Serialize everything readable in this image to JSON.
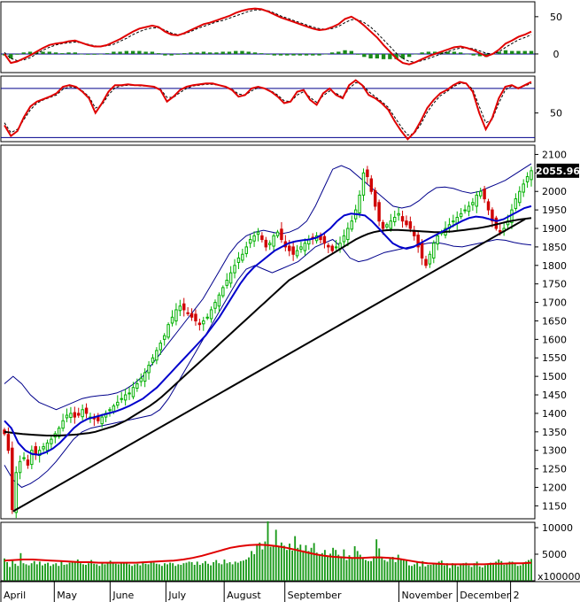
{
  "chart_data": [
    {
      "type": "line",
      "panel": "macd",
      "yticks": [
        0,
        50
      ],
      "ylim": [
        -25,
        70
      ],
      "series": [
        {
          "color": "#e00000",
          "values": [
            0,
            -12,
            -10,
            -6,
            -2,
            3,
            8,
            12,
            14,
            15,
            17,
            18,
            15,
            12,
            10,
            10,
            12,
            16,
            20,
            25,
            30,
            34,
            36,
            38,
            36,
            30,
            26,
            25,
            28,
            32,
            36,
            40,
            42,
            45,
            48,
            51,
            55,
            58,
            60,
            61,
            60,
            57,
            53,
            49,
            46,
            43,
            40,
            37,
            34,
            32,
            33,
            36,
            40,
            47,
            50,
            45,
            38,
            30,
            22,
            12,
            3,
            -6,
            -12,
            -14,
            -11,
            -7,
            -3,
            0,
            3,
            6,
            9,
            10,
            8,
            5,
            1,
            -3,
            0,
            6,
            14,
            18,
            23,
            26,
            30
          ]
        },
        {
          "color": "#000000",
          "dash": true,
          "values": [
            2,
            -6,
            -9,
            -8,
            -5,
            0,
            5,
            9,
            12,
            14,
            15,
            16,
            15,
            13,
            11,
            10,
            11,
            13,
            17,
            21,
            26,
            30,
            33,
            35,
            35,
            32,
            28,
            26,
            27,
            30,
            34,
            37,
            40,
            43,
            45,
            48,
            51,
            54,
            57,
            59,
            59,
            58,
            55,
            51,
            48,
            45,
            42,
            39,
            36,
            34,
            33,
            34,
            37,
            42,
            46,
            46,
            42,
            36,
            28,
            19,
            10,
            1,
            -6,
            -10,
            -11,
            -9,
            -6,
            -3,
            0,
            3,
            6,
            8,
            8,
            7,
            4,
            1,
            0,
            3,
            9,
            14,
            19,
            22,
            26
          ]
        },
        {
          "type": "histogram",
          "color": "#1a8a1a",
          "values": [
            -2,
            -6,
            -1,
            2,
            3,
            3,
            3,
            3,
            2,
            1,
            2,
            2,
            0,
            -1,
            -1,
            0,
            1,
            3,
            3,
            4,
            4,
            4,
            3,
            3,
            1,
            -2,
            -2,
            -1,
            1,
            2,
            2,
            3,
            2,
            2,
            3,
            3,
            4,
            4,
            3,
            2,
            1,
            -1,
            -2,
            -2,
            -2,
            -2,
            -2,
            -2,
            -2,
            -2,
            0,
            2,
            3,
            5,
            4,
            -1,
            -4,
            -6,
            -6,
            -7,
            -7,
            -7,
            -6,
            -4,
            0,
            2,
            3,
            3,
            3,
            3,
            3,
            2,
            0,
            -2,
            -3,
            -4,
            0,
            3,
            5,
            4,
            4,
            4,
            4
          ]
        }
      ]
    },
    {
      "type": "line",
      "panel": "rsi",
      "yticks": [
        50
      ],
      "hlines": [
        80,
        20
      ],
      "ylim": [
        15,
        95
      ],
      "series": [
        {
          "color": "#e00000",
          "values": [
            35,
            22,
            28,
            45,
            58,
            64,
            67,
            70,
            74,
            82,
            84,
            82,
            76,
            68,
            50,
            62,
            76,
            84,
            84,
            85,
            84,
            84,
            83,
            82,
            78,
            64,
            70,
            78,
            82,
            84,
            85,
            86,
            86,
            84,
            82,
            78,
            70,
            72,
            80,
            82,
            80,
            76,
            70,
            62,
            64,
            76,
            78,
            66,
            60,
            74,
            80,
            72,
            68,
            84,
            90,
            84,
            72,
            68,
            62,
            54,
            40,
            28,
            18,
            26,
            40,
            56,
            66,
            74,
            78,
            84,
            88,
            86,
            76,
            50,
            30,
            44,
            68,
            82,
            84,
            80,
            84,
            88
          ]
        },
        {
          "color": "#000000",
          "dash": true,
          "values": [
            38,
            26,
            30,
            42,
            54,
            62,
            66,
            69,
            72,
            79,
            82,
            81,
            77,
            70,
            56,
            60,
            72,
            81,
            83,
            84,
            84,
            83,
            83,
            82,
            79,
            69,
            69,
            75,
            80,
            83,
            84,
            85,
            85,
            84,
            82,
            79,
            73,
            72,
            77,
            81,
            80,
            77,
            72,
            65,
            64,
            72,
            76,
            69,
            63,
            71,
            77,
            74,
            69,
            80,
            87,
            85,
            76,
            70,
            64,
            57,
            45,
            33,
            23,
            25,
            36,
            51,
            62,
            71,
            76,
            82,
            86,
            86,
            79,
            58,
            38,
            42,
            62,
            78,
            83,
            81,
            83,
            86
          ]
        }
      ]
    },
    {
      "type": "candlestick",
      "panel": "price",
      "ylim": [
        1115,
        2125
      ],
      "yticks": [
        1150,
        1200,
        1250,
        1300,
        1350,
        1400,
        1450,
        1500,
        1550,
        1600,
        1650,
        1700,
        1750,
        1800,
        1850,
        1900,
        1950,
        2000,
        2050,
        2100
      ],
      "last_price_label": "2055.96",
      "x_labels": [
        "April",
        "May",
        "June",
        "July",
        "August",
        "September",
        "November",
        "December",
        "2"
      ],
      "x_label_positions": [
        0,
        22,
        45,
        68,
        92,
        117,
        164,
        188,
        210
      ],
      "trendline": {
        "from": [
          5,
          1135
        ],
        "to": [
          216,
          1925
        ]
      },
      "closes": [
        1345,
        1300,
        1140,
        1240,
        1270,
        1280,
        1260,
        1300,
        1290,
        1300,
        1310,
        1320,
        1330,
        1345,
        1360,
        1380,
        1395,
        1400,
        1390,
        1395,
        1410,
        1400,
        1390,
        1385,
        1380,
        1390,
        1400,
        1410,
        1420,
        1430,
        1440,
        1450,
        1455,
        1470,
        1480,
        1495,
        1510,
        1530,
        1550,
        1570,
        1590,
        1610,
        1640,
        1660,
        1680,
        1690,
        1680,
        1670,
        1660,
        1650,
        1640,
        1650,
        1660,
        1680,
        1700,
        1720,
        1740,
        1760,
        1780,
        1800,
        1820,
        1830,
        1850,
        1870,
        1880,
        1890,
        1870,
        1850,
        1860,
        1880,
        1890,
        1870,
        1850,
        1840,
        1830,
        1840,
        1850,
        1860,
        1870,
        1875,
        1880,
        1870,
        1860,
        1850,
        1840,
        1850,
        1860,
        1880,
        1900,
        1920,
        1950,
        1990,
        2050,
        2040,
        2000,
        1960,
        1920,
        1900,
        1910,
        1920,
        1930,
        1940,
        1920,
        1910,
        1900,
        1880,
        1850,
        1820,
        1800,
        1830,
        1860,
        1880,
        1890,
        1900,
        1910,
        1920,
        1930,
        1940,
        1950,
        1960,
        1970,
        1990,
        2000,
        1980,
        1950,
        1920,
        1900,
        1890,
        1900,
        1920,
        1950,
        1980,
        2000,
        2020,
        2040,
        2056
      ],
      "ma_long": [
        1350,
        1348,
        1346,
        1344,
        1343,
        1342,
        1341,
        1340,
        1340,
        1340,
        1341,
        1342,
        1343,
        1345,
        1347,
        1350,
        1355,
        1360,
        1365,
        1372,
        1380,
        1390,
        1400,
        1410,
        1420,
        1432,
        1445,
        1460,
        1475,
        1490,
        1505,
        1520,
        1535,
        1550,
        1565,
        1580,
        1595,
        1610,
        1625,
        1640,
        1655,
        1670,
        1685,
        1700,
        1715,
        1730,
        1745,
        1760,
        1770,
        1780,
        1790,
        1800,
        1810,
        1820,
        1830,
        1840,
        1850,
        1860,
        1870,
        1878,
        1885,
        1890,
        1893,
        1895,
        1896,
        1896,
        1895,
        1894,
        1893,
        1892,
        1891,
        1890,
        1890,
        1891,
        1892,
        1894,
        1896,
        1898,
        1900,
        1903,
        1906,
        1910,
        1914,
        1918,
        1921,
        1924,
        1926,
        1928
      ],
      "ma_mid": [
        1380,
        1360,
        1320,
        1300,
        1290,
        1288,
        1295,
        1305,
        1320,
        1340,
        1360,
        1375,
        1385,
        1390,
        1395,
        1400,
        1405,
        1412,
        1420,
        1430,
        1440,
        1455,
        1470,
        1490,
        1510,
        1530,
        1550,
        1570,
        1590,
        1610,
        1635,
        1660,
        1690,
        1720,
        1750,
        1775,
        1795,
        1810,
        1825,
        1840,
        1850,
        1860,
        1865,
        1868,
        1870,
        1875,
        1885,
        1900,
        1920,
        1935,
        1940,
        1938,
        1935,
        1920,
        1900,
        1880,
        1860,
        1850,
        1845,
        1850,
        1860,
        1870,
        1880,
        1890,
        1900,
        1910,
        1920,
        1928,
        1932,
        1930,
        1925,
        1920,
        1925,
        1935,
        1945,
        1955,
        1960
      ],
      "bb_upper": [
        1480,
        1500,
        1480,
        1450,
        1430,
        1420,
        1410,
        1420,
        1430,
        1440,
        1445,
        1448,
        1450,
        1455,
        1465,
        1480,
        1500,
        1530,
        1560,
        1590,
        1620,
        1650,
        1680,
        1710,
        1750,
        1790,
        1830,
        1860,
        1880,
        1890,
        1895,
        1890,
        1885,
        1890,
        1900,
        1920,
        1960,
        2010,
        2060,
        2070,
        2060,
        2040,
        2020,
        2000,
        1980,
        1960,
        1955,
        1960,
        1975,
        1995,
        2010,
        2012,
        2008,
        2000,
        1995,
        2000,
        2010,
        2020,
        2030,
        2045,
        2060,
        2075
      ],
      "bb_lower": [
        1260,
        1220,
        1200,
        1210,
        1225,
        1245,
        1270,
        1300,
        1330,
        1350,
        1360,
        1365,
        1370,
        1375,
        1380,
        1385,
        1390,
        1395,
        1410,
        1440,
        1480,
        1520,
        1560,
        1600,
        1640,
        1680,
        1720,
        1760,
        1790,
        1800,
        1790,
        1780,
        1790,
        1800,
        1810,
        1830,
        1850,
        1860,
        1870,
        1850,
        1820,
        1810,
        1815,
        1825,
        1835,
        1840,
        1845,
        1850,
        1855,
        1860,
        1862,
        1858,
        1852,
        1850,
        1855,
        1860,
        1865,
        1870,
        1868,
        1862,
        1858,
        1855
      ]
    },
    {
      "type": "bar",
      "panel": "volume",
      "yticks": [
        5000,
        10000
      ],
      "ylim": [
        0,
        11000
      ],
      "unit_label": "x100000",
      "ma_line": [
        3800,
        3900,
        4000,
        4000,
        3900,
        3800,
        3700,
        3600,
        3500,
        3500,
        3400,
        3400,
        3400,
        3400,
        3400,
        3500,
        3600,
        3700,
        3800,
        4000,
        4300,
        4700,
        5200,
        5700,
        6200,
        6500,
        6700,
        6800,
        6700,
        6500,
        6200,
        5800,
        5400,
        5000,
        4700,
        4500,
        4400,
        4300,
        4300,
        4400,
        4400,
        4300,
        4100,
        3800,
        3500,
        3300,
        3200,
        3100,
        3100,
        3100,
        3100,
        3100,
        3200,
        3200,
        3300,
        3300,
        3400
      ],
      "values": [
        4200,
        3500,
        2600,
        3800,
        3200,
        2800,
        5200,
        3300,
        3100,
        2900,
        3300,
        3700,
        3100,
        3600,
        2900,
        3200,
        3400,
        2800,
        3100,
        3300,
        2800,
        3600,
        3000,
        3100,
        3400,
        3700,
        3600,
        4000,
        3300,
        3100,
        3000,
        3300,
        3900,
        3200,
        3100,
        2800,
        3300,
        3100,
        3400,
        3800,
        3400,
        3200,
        3100,
        3500,
        3400,
        3300,
        3100,
        2800,
        3100,
        3200,
        2900,
        3600,
        3200,
        3100,
        3600,
        3400,
        3200,
        3100,
        2800,
        3300,
        3100,
        3400,
        3300,
        2800,
        3100,
        3000,
        3300,
        3400,
        3600,
        3500,
        3000,
        3600,
        3000,
        3300,
        3700,
        3200,
        2900,
        3500,
        3900,
        3300,
        3100,
        4000,
        3300,
        3500,
        3100,
        3600,
        3400,
        3700,
        3800,
        4000,
        4400,
        5600,
        5000,
        6700,
        7200,
        5900,
        7400,
        11200,
        6400,
        6700,
        9600,
        6400,
        7200,
        6600,
        5800,
        7000,
        5700,
        8400,
        6200,
        6800,
        5700,
        6700,
        5600,
        6200,
        7100,
        5300,
        5000,
        5200,
        5800,
        4600,
        5100,
        6200,
        5800,
        4900,
        4600,
        5900,
        3900,
        4800,
        4300,
        6500,
        5600,
        4900,
        4400,
        3900,
        3700,
        3700,
        4600,
        7800,
        6100,
        4400,
        3900,
        3600,
        4200,
        4500,
        3500,
        4900,
        4100,
        3900,
        3900,
        2900,
        2800,
        3100,
        3500,
        2700,
        3700,
        2700,
        3000,
        3000,
        3100,
        3200,
        3600,
        3800,
        2900,
        3300,
        2400,
        3300,
        3100,
        2700,
        3000,
        3300,
        3400,
        2900,
        2600,
        3300,
        3600,
        2700,
        2500,
        2900,
        3100,
        3400,
        3200,
        3600,
        4000,
        3700,
        3000,
        3200,
        3600,
        3600,
        3200,
        2800,
        2900,
        3400,
        3600,
        3900,
        4100
      ]
    }
  ]
}
